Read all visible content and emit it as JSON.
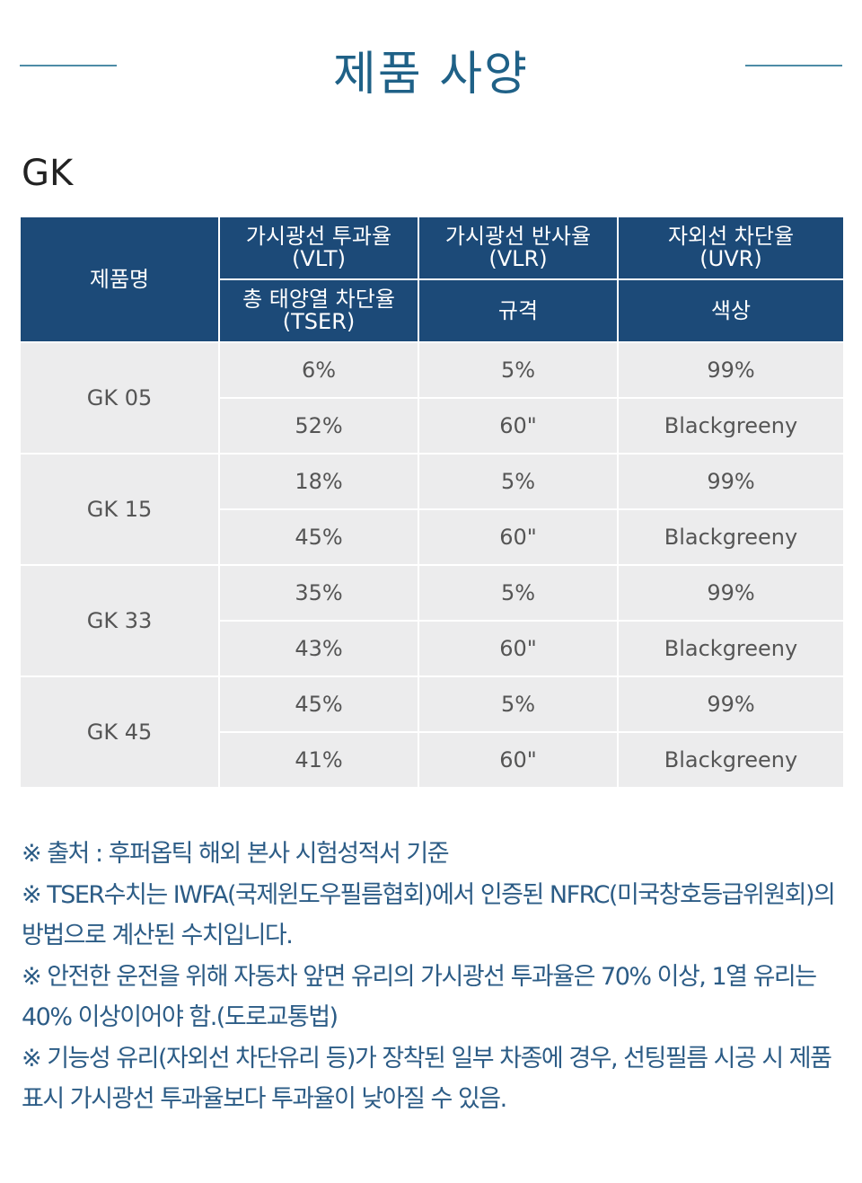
{
  "header": {
    "title": "제품 사양"
  },
  "section": {
    "title": "GK"
  },
  "table": {
    "head": {
      "product": "제품명",
      "row1": [
        [
          "가시광선 투과율",
          "(VLT)"
        ],
        [
          "가시광선 반사율",
          "(VLR)"
        ],
        [
          "자외선 차단율",
          "(UVR)"
        ]
      ],
      "row2": [
        [
          "총 태양열 차단율",
          "(TSER)"
        ],
        [
          "규격"
        ],
        [
          "색상"
        ]
      ]
    },
    "products": [
      {
        "name": "GK 05",
        "rows": [
          [
            "6%",
            "5%",
            "99%"
          ],
          [
            "52%",
            "60\"",
            "Blackgreeny"
          ]
        ]
      },
      {
        "name": "GK 15",
        "rows": [
          [
            "18%",
            "5%",
            "99%"
          ],
          [
            "45%",
            "60\"",
            "Blackgreeny"
          ]
        ]
      },
      {
        "name": "GK 33",
        "rows": [
          [
            "35%",
            "5%",
            "99%"
          ],
          [
            "43%",
            "60\"",
            "Blackgreeny"
          ]
        ]
      },
      {
        "name": "GK 45",
        "rows": [
          [
            "45%",
            "5%",
            "99%"
          ],
          [
            "41%",
            "60\"",
            "Blackgreeny"
          ]
        ]
      }
    ]
  },
  "notes": [
    "※ 출처 : 후퍼옵틱 해외 본사 시험성적서 기준",
    "※ TSER수치는 IWFA(국제윈도우필름협회)에서 인증된 NFRC(미국창호등급위원회)의 방법으로 계산된 수치입니다.",
    "※ 안전한 운전을 위해 자동차 앞면 유리의 가시광선 투과율은 70% 이상, 1열 유리는 40% 이상이어야 함.(도로교통법)",
    "※ 기능성 유리(자외선 차단유리 등)가 장착된 일부 차종에 경우, 선팅필름 시공 시 제품 표시 가시광선 투과율보다 투과율이 낮아질 수 있음."
  ]
}
